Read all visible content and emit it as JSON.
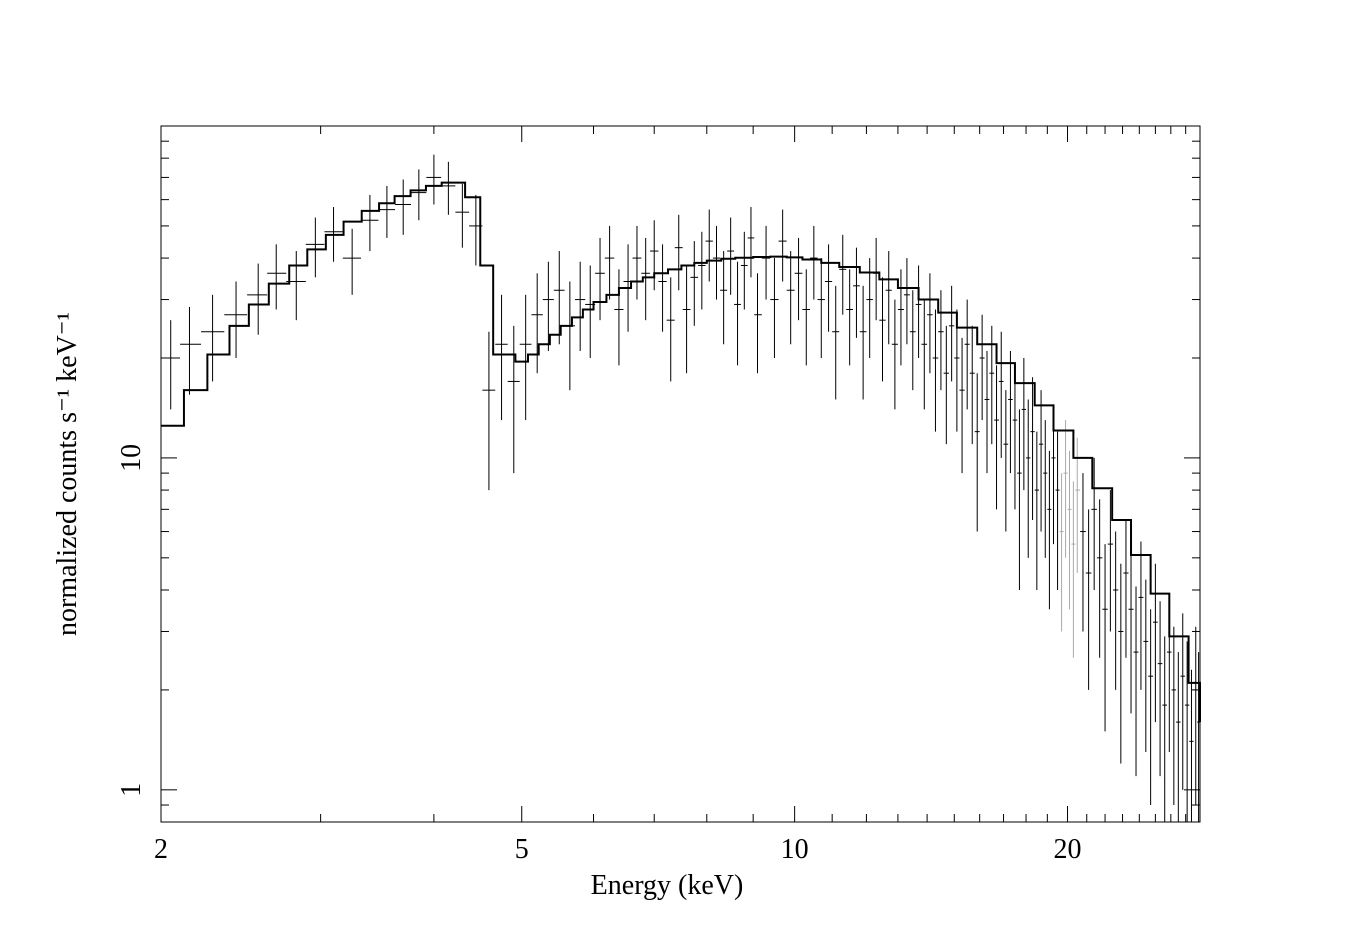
{
  "chart_data": {
    "type": "line",
    "title": "",
    "xlabel": "Energy (keV)",
    "ylabel": "normalized counts s⁻¹ keV⁻¹",
    "x_scale": "log",
    "y_scale": "log",
    "xlim": [
      2,
      28
    ],
    "ylim": [
      0.8,
      100
    ],
    "x_ticks": [
      2,
      5,
      10,
      20
    ],
    "y_ticks": [
      1,
      10
    ],
    "colors": {
      "model": "#000000",
      "data": "#000000",
      "data_secondary": "#aaaaaa"
    },
    "series": [
      {
        "kind": "step",
        "values": [
          [
            2.0,
            12.5
          ],
          [
            2.12,
            16.0
          ],
          [
            2.25,
            20.5
          ],
          [
            2.38,
            25.0
          ],
          [
            2.5,
            29.0
          ],
          [
            2.63,
            33.5
          ],
          [
            2.77,
            38.0
          ],
          [
            2.9,
            42.5
          ],
          [
            3.04,
            47.0
          ],
          [
            3.18,
            51.5
          ],
          [
            3.33,
            55.5
          ],
          [
            3.48,
            58.5
          ],
          [
            3.62,
            61.5
          ],
          [
            3.77,
            64.0
          ],
          [
            3.92,
            66.0
          ],
          [
            4.08,
            67.5
          ],
          [
            4.33,
            61.0
          ],
          [
            4.5,
            38.0
          ],
          [
            4.65,
            20.5
          ],
          [
            4.92,
            19.5
          ],
          [
            5.08,
            20.5
          ],
          [
            5.22,
            22.0
          ],
          [
            5.37,
            23.5
          ],
          [
            5.52,
            25.0
          ],
          [
            5.68,
            26.5
          ],
          [
            5.84,
            28.0
          ],
          [
            6.0,
            29.5
          ],
          [
            6.2,
            31.0
          ],
          [
            6.4,
            32.5
          ],
          [
            6.6,
            34.0
          ],
          [
            6.8,
            35.0
          ],
          [
            7.0,
            36.0
          ],
          [
            7.25,
            37.0
          ],
          [
            7.5,
            38.0
          ],
          [
            7.75,
            38.7
          ],
          [
            8.0,
            39.3
          ],
          [
            8.3,
            39.8
          ],
          [
            8.6,
            40.1
          ],
          [
            9.0,
            40.3
          ],
          [
            9.4,
            40.4
          ],
          [
            9.8,
            40.2
          ],
          [
            10.2,
            39.6
          ],
          [
            10.7,
            38.7
          ],
          [
            11.2,
            37.6
          ],
          [
            11.8,
            36.2
          ],
          [
            12.4,
            34.5
          ],
          [
            13.0,
            32.5
          ],
          [
            13.7,
            30.0
          ],
          [
            14.4,
            27.4
          ],
          [
            15.1,
            24.7
          ],
          [
            15.9,
            22.0
          ],
          [
            16.7,
            19.3
          ],
          [
            17.5,
            16.8
          ],
          [
            18.4,
            14.4
          ],
          [
            19.3,
            12.1
          ],
          [
            20.3,
            10.0
          ],
          [
            21.3,
            8.1
          ],
          [
            22.4,
            6.5
          ],
          [
            23.5,
            5.1
          ],
          [
            24.7,
            3.9
          ],
          [
            25.9,
            2.9
          ],
          [
            27.2,
            2.1
          ],
          [
            28.0,
            1.6
          ]
        ]
      },
      {
        "kind": "points_with_errorbars",
        "values": [
          [
            2.05,
            20.0,
            6.0
          ],
          [
            2.15,
            22.0,
            6.5
          ],
          [
            2.28,
            24.0,
            7.0
          ],
          [
            2.42,
            27.0,
            7.0
          ],
          [
            2.56,
            31.0,
            7.5
          ],
          [
            2.68,
            36.0,
            8.0
          ],
          [
            2.82,
            34.0,
            8.0
          ],
          [
            2.96,
            44.0,
            9.0
          ],
          [
            3.1,
            48.0,
            9.0
          ],
          [
            3.25,
            40.0,
            9.0
          ],
          [
            3.4,
            52.0,
            10.0
          ],
          [
            3.55,
            56.0,
            10.0
          ],
          [
            3.7,
            58.0,
            11.0
          ],
          [
            3.85,
            63.0,
            11.0
          ],
          [
            4.0,
            70.0,
            12.0
          ],
          [
            4.15,
            66.0,
            12.0
          ],
          [
            4.3,
            55.0,
            12.0
          ],
          [
            4.45,
            50.0,
            12.0
          ],
          [
            4.6,
            16.0,
            8.0
          ],
          [
            4.75,
            22.0,
            9.0
          ],
          [
            4.9,
            17.0,
            8.0
          ],
          [
            5.05,
            22.0,
            9.0
          ],
          [
            5.2,
            27.0,
            9.0
          ],
          [
            5.35,
            30.0,
            9.0
          ],
          [
            5.5,
            32.0,
            10.0
          ],
          [
            5.65,
            25.0,
            9.0
          ],
          [
            5.8,
            30.0,
            9.0
          ],
          [
            5.95,
            29.0,
            9.0
          ],
          [
            6.1,
            36.0,
            10.0
          ],
          [
            6.25,
            40.0,
            10.0
          ],
          [
            6.4,
            28.0,
            9.0
          ],
          [
            6.55,
            34.0,
            10.0
          ],
          [
            6.7,
            40.0,
            10.0
          ],
          [
            6.85,
            36.0,
            10.0
          ],
          [
            7.0,
            42.0,
            10.0
          ],
          [
            7.15,
            34.0,
            10.0
          ],
          [
            7.3,
            26.0,
            9.0
          ],
          [
            7.45,
            43.0,
            11.0
          ],
          [
            7.6,
            28.0,
            10.0
          ],
          [
            7.75,
            35.0,
            10.0
          ],
          [
            7.9,
            38.0,
            10.0
          ],
          [
            8.05,
            45.0,
            11.0
          ],
          [
            8.2,
            40.0,
            10.0
          ],
          [
            8.35,
            32.0,
            10.0
          ],
          [
            8.5,
            42.0,
            11.0
          ],
          [
            8.65,
            29.0,
            10.0
          ],
          [
            8.8,
            38.0,
            10.0
          ],
          [
            8.95,
            46.0,
            11.0
          ],
          [
            9.1,
            27.0,
            9.0
          ],
          [
            9.3,
            40.0,
            10.0
          ],
          [
            9.5,
            30.0,
            10.0
          ],
          [
            9.7,
            45.0,
            11.0
          ],
          [
            9.9,
            32.0,
            10.0
          ],
          [
            10.1,
            36.0,
            10.0
          ],
          [
            10.3,
            28.0,
            9.0
          ],
          [
            10.5,
            40.0,
            10.0
          ],
          [
            10.7,
            30.0,
            10.0
          ],
          [
            10.9,
            34.0,
            10.0
          ],
          [
            11.1,
            24.0,
            9.0
          ],
          [
            11.3,
            37.0,
            10.0
          ],
          [
            11.5,
            28.0,
            9.0
          ],
          [
            11.7,
            33.0,
            10.0
          ],
          [
            11.9,
            24.0,
            9.0
          ],
          [
            12.1,
            30.0,
            10.0
          ],
          [
            12.3,
            36.0,
            10.0
          ],
          [
            12.5,
            26.0,
            9.0
          ],
          [
            12.7,
            32.0,
            10.0
          ],
          [
            12.9,
            22.0,
            8.0
          ],
          [
            13.1,
            28.0,
            9.0
          ],
          [
            13.3,
            31.0,
            9.0
          ],
          [
            13.5,
            24.0,
            8.0
          ],
          [
            13.7,
            29.0,
            9.0
          ],
          [
            13.9,
            22.0,
            8.0
          ],
          [
            14.1,
            27.0,
            9.0
          ],
          [
            14.3,
            20.0,
            8.0
          ],
          [
            14.5,
            24.0,
            8.0
          ],
          [
            14.7,
            18.0,
            7.0
          ],
          [
            14.9,
            25.0,
            8.0
          ],
          [
            15.1,
            20.0,
            8.0
          ],
          [
            15.3,
            16.0,
            7.0
          ],
          [
            15.5,
            22.0,
            8.0
          ],
          [
            15.7,
            18.0,
            7.0
          ],
          [
            15.9,
            12.0,
            6.0
          ],
          [
            16.1,
            20.0,
            7.0
          ],
          [
            16.3,
            15.0,
            6.0
          ],
          [
            16.5,
            18.0,
            7.0
          ],
          [
            16.7,
            13.0,
            6.0
          ],
          [
            16.9,
            17.0,
            7.0
          ],
          [
            17.1,
            11.0,
            5.0
          ],
          [
            17.3,
            15.0,
            6.0
          ],
          [
            17.5,
            13.0,
            6.0
          ],
          [
            17.7,
            9.0,
            5.0
          ],
          [
            17.9,
            14.0,
            6.0
          ],
          [
            18.1,
            10.0,
            5.0
          ],
          [
            18.3,
            12.0,
            5.5
          ],
          [
            18.5,
            8.0,
            4.0
          ],
          [
            18.7,
            11.0,
            5.0
          ],
          [
            18.9,
            9.0,
            4.0
          ],
          [
            19.1,
            7.0,
            3.5
          ],
          [
            19.3,
            10.0,
            4.5
          ],
          [
            19.5,
            8.0,
            4.0
          ],
          [
            19.7,
            6.0,
            3.0
          ],
          [
            19.9,
            9.0,
            4.0
          ],
          [
            20.1,
            7.0,
            3.5
          ],
          [
            20.3,
            5.5,
            3.0
          ],
          [
            20.5,
            8.0,
            3.5
          ],
          [
            20.8,
            6.0,
            3.0
          ],
          [
            21.1,
            4.5,
            2.5
          ],
          [
            21.4,
            7.0,
            3.0
          ],
          [
            21.7,
            5.0,
            2.5
          ],
          [
            22.0,
            3.5,
            2.0
          ],
          [
            22.3,
            5.5,
            2.5
          ],
          [
            22.6,
            4.0,
            2.0
          ],
          [
            22.9,
            3.0,
            1.8
          ],
          [
            23.2,
            4.5,
            2.0
          ],
          [
            23.5,
            3.5,
            1.8
          ],
          [
            23.8,
            2.6,
            1.5
          ],
          [
            24.1,
            3.8,
            1.8
          ],
          [
            24.4,
            2.8,
            1.5
          ],
          [
            24.7,
            2.2,
            1.3
          ],
          [
            25.0,
            3.2,
            1.6
          ],
          [
            25.3,
            2.4,
            1.3
          ],
          [
            25.6,
            1.8,
            1.1
          ],
          [
            25.9,
            2.6,
            1.3
          ],
          [
            26.2,
            2.0,
            1.1
          ],
          [
            26.5,
            1.6,
            1.0
          ],
          [
            26.8,
            2.2,
            1.2
          ],
          [
            27.1,
            1.8,
            1.0
          ],
          [
            27.4,
            1.4,
            0.9
          ],
          [
            27.7,
            2.0,
            1.1
          ],
          [
            27.9,
            1.6,
            1.0
          ]
        ]
      }
    ]
  }
}
